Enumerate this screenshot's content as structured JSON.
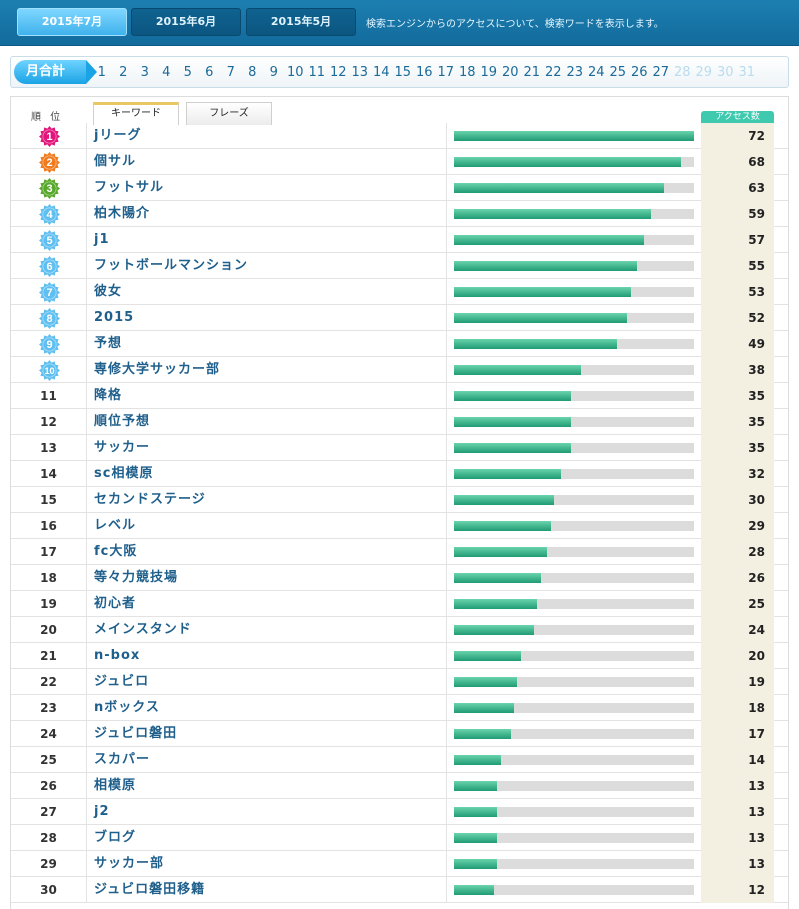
{
  "header": {
    "month_tabs": [
      {
        "label": "2015年7月",
        "active": true
      },
      {
        "label": "2015年6月",
        "active": false
      },
      {
        "label": "2015年5月",
        "active": false
      }
    ],
    "description": "検索エンジンからのアクセスについて、検索ワードを表示します。"
  },
  "daybar": {
    "month_total_label": "月合計",
    "days_active": [
      "1",
      "2",
      "3",
      "4",
      "5",
      "6",
      "7",
      "8",
      "9",
      "10",
      "11",
      "12",
      "13",
      "14",
      "15",
      "16",
      "17",
      "18",
      "19",
      "20",
      "21",
      "22",
      "23",
      "24",
      "25",
      "26",
      "27"
    ],
    "days_inactive": [
      "28",
      "29",
      "30",
      "31"
    ]
  },
  "table": {
    "rank_header": "順 位",
    "tab_keyword": "キーワード",
    "tab_phrase": "フレーズ",
    "access_header": "アクセス数",
    "max_value": 72,
    "colors": {
      "medal_top3": [
        "#e2157b",
        "#f07a1c",
        "#58a82b"
      ],
      "medal_rest": "#5fbff0",
      "bar_fill": "#2aa37c",
      "bar_track": "#dcdcdc"
    },
    "rows": [
      {
        "rank": "1",
        "word": "jリーグ",
        "count": 72
      },
      {
        "rank": "2",
        "word": "個サル",
        "count": 68
      },
      {
        "rank": "3",
        "word": "フットサル",
        "count": 63
      },
      {
        "rank": "4",
        "word": "柏木陽介",
        "count": 59
      },
      {
        "rank": "5",
        "word": "j1",
        "count": 57
      },
      {
        "rank": "6",
        "word": "フットボールマンション",
        "count": 55
      },
      {
        "rank": "7",
        "word": "彼女",
        "count": 53
      },
      {
        "rank": "8",
        "word": "2015",
        "count": 52
      },
      {
        "rank": "9",
        "word": "予想",
        "count": 49
      },
      {
        "rank": "10",
        "word": "専修大学サッカー部",
        "count": 38
      },
      {
        "rank": "11",
        "word": "降格",
        "count": 35
      },
      {
        "rank": "12",
        "word": "順位予想",
        "count": 35
      },
      {
        "rank": "13",
        "word": "サッカー",
        "count": 35
      },
      {
        "rank": "14",
        "word": "sc相模原",
        "count": 32
      },
      {
        "rank": "15",
        "word": "セカンドステージ",
        "count": 30
      },
      {
        "rank": "16",
        "word": "レベル",
        "count": 29
      },
      {
        "rank": "17",
        "word": "fc大阪",
        "count": 28
      },
      {
        "rank": "18",
        "word": "等々力競技場",
        "count": 26
      },
      {
        "rank": "19",
        "word": "初心者",
        "count": 25
      },
      {
        "rank": "20",
        "word": "メインスタンド",
        "count": 24
      },
      {
        "rank": "21",
        "word": "n-box",
        "count": 20
      },
      {
        "rank": "22",
        "word": "ジュビロ",
        "count": 19
      },
      {
        "rank": "23",
        "word": "nボックス",
        "count": 18
      },
      {
        "rank": "24",
        "word": "ジュビロ磐田",
        "count": 17
      },
      {
        "rank": "25",
        "word": "スカパー",
        "count": 14
      },
      {
        "rank": "26",
        "word": "相模原",
        "count": 13
      },
      {
        "rank": "27",
        "word": "j2",
        "count": 13
      },
      {
        "rank": "28",
        "word": "ブログ",
        "count": 13
      },
      {
        "rank": "29",
        "word": "サッカー部",
        "count": 13
      },
      {
        "rank": "30",
        "word": "ジュビロ磐田移籍",
        "count": 12
      }
    ]
  }
}
